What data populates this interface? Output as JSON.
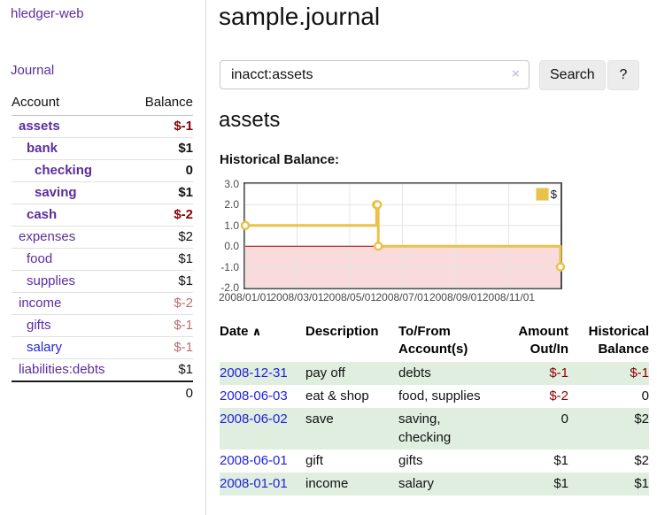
{
  "app": {
    "brand": "hledger-web",
    "nav_journal": "Journal"
  },
  "sidebar": {
    "headers": {
      "account": "Account",
      "balance": "Balance"
    },
    "rows": [
      {
        "name": "assets",
        "balance": "$-1"
      },
      {
        "name": "bank",
        "balance": "$1"
      },
      {
        "name": "checking",
        "balance": "0"
      },
      {
        "name": "saving",
        "balance": "$1"
      },
      {
        "name": "cash",
        "balance": "$-2"
      },
      {
        "name": "expenses",
        "balance": "$2"
      },
      {
        "name": "food",
        "balance": "$1"
      },
      {
        "name": "supplies",
        "balance": "$1"
      },
      {
        "name": "income",
        "balance": "$-2"
      },
      {
        "name": "gifts",
        "balance": "$-1"
      },
      {
        "name": "salary",
        "balance": "$-1"
      },
      {
        "name": "liabilities:debts",
        "balance": "$1"
      }
    ],
    "total": "0"
  },
  "main": {
    "title": "sample.journal",
    "search": {
      "value": "inacct:assets",
      "clear_icon": "×",
      "search_button": "Search",
      "help_button": "?"
    },
    "account_heading": "assets",
    "chart_heading": "Historical Balance:"
  },
  "chart_data": {
    "type": "line",
    "title": "Historical Balance",
    "step": true,
    "series": [
      {
        "name": "$",
        "color": "#e8c24a",
        "points": [
          [
            "2008/01/01",
            1
          ],
          [
            "2008/06/01",
            2
          ],
          [
            "2008/06/02",
            2
          ],
          [
            "2008/06/03",
            0
          ],
          [
            "2008/12/31",
            -1
          ]
        ]
      }
    ],
    "xlim": [
      "2008/01/01",
      "2008/12/31"
    ],
    "ylim": [
      -2,
      3
    ],
    "yticks": [
      "3.0",
      "2.0",
      "1.0",
      "0.0",
      "-1.0",
      "-2.0"
    ],
    "xticks": [
      "2008/01/01",
      "2008/03/01",
      "2008/05/01",
      "2008/07/01",
      "2008/09/01",
      "2008/11/01"
    ],
    "legend": {
      "label": "$",
      "position": "top-right"
    },
    "grid": true,
    "negative_fill": "#fadbdb",
    "zero_line_color": "#a40000",
    "grid_color": "#e4e4e4"
  },
  "register": {
    "headers": {
      "date": "Date",
      "sort_icon": "∧",
      "description": "Description",
      "accounts": "To/From Account(s)",
      "amount": "Amount Out/In",
      "balance": "Historical Balance"
    },
    "rows": [
      {
        "date": "2008-12-31",
        "description": "pay off",
        "accounts": "debts",
        "amount": "$-1",
        "balance": "$-1"
      },
      {
        "date": "2008-06-03",
        "description": "eat & shop",
        "accounts": "food, supplies",
        "amount": "$-2",
        "balance": "0"
      },
      {
        "date": "2008-06-02",
        "description": "save",
        "accounts": "saving, checking",
        "amount": "0",
        "balance": "$2"
      },
      {
        "date": "2008-06-01",
        "description": "gift",
        "accounts": "gifts",
        "amount": "$1",
        "balance": "$2"
      },
      {
        "date": "2008-01-01",
        "description": "income",
        "accounts": "salary",
        "amount": "$1",
        "balance": "$1"
      }
    ]
  }
}
